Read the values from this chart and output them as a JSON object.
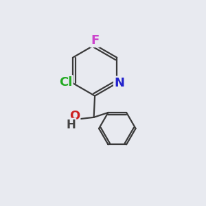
{
  "background_color": "#e8eaf0",
  "bond_color": "#3a3a3a",
  "atom_colors": {
    "F": "#cc44cc",
    "Cl": "#22aa22",
    "N": "#2222cc",
    "O": "#cc2222",
    "H": "#444444",
    "C": "#3a3a3a"
  },
  "font_size": 12,
  "bond_width": 1.6
}
